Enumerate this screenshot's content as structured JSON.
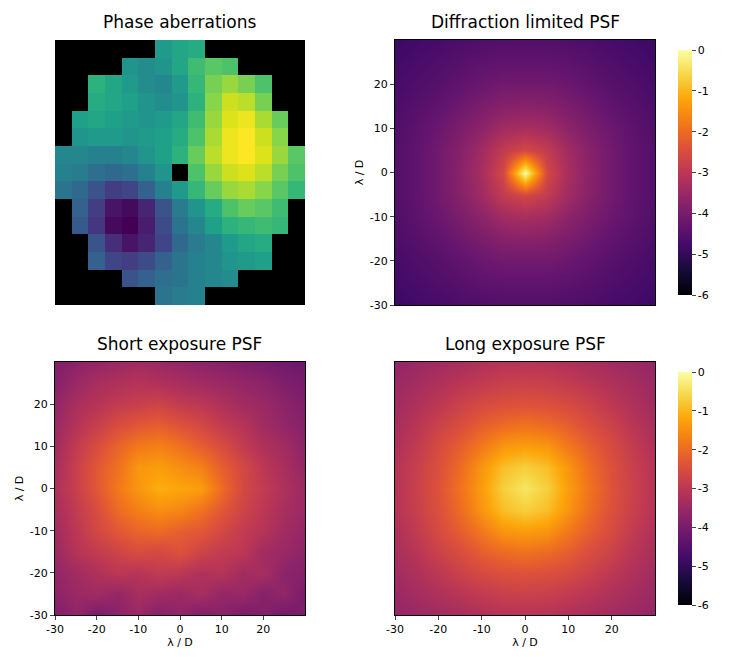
{
  "chart_data": [
    {
      "type": "heatmap",
      "title": "Phase aberrations",
      "color": "viridis",
      "tick_labels": false,
      "xlim": [
        -7.5,
        7.5
      ],
      "ylim": [
        -7.5,
        7.5
      ],
      "x": [
        -7,
        -6,
        -5,
        -4,
        -3,
        -2,
        -1,
        0,
        1,
        2,
        3,
        4,
        5,
        6,
        7
      ],
      "y": [
        -7,
        -6,
        -5,
        -4,
        -3,
        -2,
        -1,
        0,
        1,
        2,
        3,
        4,
        5,
        6,
        7
      ],
      "z": [
        [
          null,
          null,
          null,
          null,
          null,
          null,
          -0.5,
          -0.4,
          -0.3,
          null,
          null,
          null,
          null,
          null,
          null
        ],
        [
          null,
          null,
          null,
          null,
          -1.0,
          -0.8,
          -0.6,
          -0.5,
          -0.3,
          -0.2,
          -0.1,
          null,
          null,
          null,
          null
        ],
        [
          null,
          null,
          -0.8,
          -1.2,
          -1.3,
          -1.1,
          -0.8,
          -0.5,
          -0.3,
          -0.2,
          0.0,
          0.1,
          0.2,
          null,
          null
        ],
        [
          null,
          null,
          -1.0,
          -1.5,
          -1.8,
          -1.6,
          -1.2,
          -0.7,
          -0.4,
          -0.2,
          0.1,
          0.3,
          0.4,
          null,
          null
        ],
        [
          null,
          -0.9,
          -1.4,
          -1.9,
          -2.0,
          -1.7,
          -1.1,
          -0.5,
          -0.2,
          0.2,
          0.5,
          0.6,
          0.7,
          0.6,
          null
        ],
        [
          null,
          -0.8,
          -1.3,
          -1.8,
          -1.9,
          -1.6,
          -1.0,
          -0.4,
          0.0,
          0.4,
          0.8,
          1.0,
          0.9,
          0.7,
          null
        ],
        [
          -0.5,
          -0.7,
          -1.0,
          -1.3,
          -1.2,
          -0.8,
          -0.3,
          0.1,
          0.6,
          1.0,
          1.3,
          1.4,
          1.2,
          0.9,
          0.6
        ],
        [
          -0.3,
          -0.4,
          -0.6,
          -0.7,
          -0.6,
          -0.3,
          0.0,
          null,
          0.8,
          1.3,
          1.6,
          1.7,
          1.5,
          1.1,
          0.8
        ],
        [
          -0.2,
          -0.2,
          -0.3,
          -0.3,
          -0.2,
          0.0,
          0.2,
          0.5,
          1.0,
          1.5,
          1.8,
          1.9,
          1.7,
          1.3,
          0.9
        ],
        [
          null,
          0.0,
          0.1,
          0.1,
          0.0,
          0.1,
          0.2,
          0.4,
          0.8,
          1.4,
          1.8,
          1.9,
          1.6,
          1.2,
          null
        ],
        [
          null,
          0.2,
          0.3,
          0.2,
          0.1,
          0.0,
          0.1,
          0.3,
          0.7,
          1.3,
          1.7,
          1.8,
          1.4,
          1.0,
          null
        ],
        [
          null,
          null,
          0.4,
          0.3,
          0.2,
          0.0,
          -0.1,
          0.0,
          0.5,
          1.2,
          1.6,
          1.5,
          1.1,
          null,
          null
        ],
        [
          null,
          null,
          0.5,
          0.3,
          0.1,
          -0.1,
          -0.2,
          0.1,
          0.6,
          1.1,
          1.3,
          1.1,
          0.8,
          null,
          null
        ],
        [
          null,
          null,
          null,
          null,
          0.0,
          -0.1,
          0.0,
          0.3,
          0.7,
          0.9,
          0.8,
          null,
          null,
          null,
          null
        ],
        [
          null,
          null,
          null,
          null,
          null,
          null,
          0.1,
          0.3,
          0.4,
          null,
          null,
          null,
          null,
          null,
          null
        ]
      ]
    },
    {
      "type": "heatmap",
      "title": "Diffraction limited PSF",
      "color": "inferno",
      "tick_labels": "y",
      "ylabel": "λ / D",
      "xlim": [
        -30,
        30
      ],
      "ylim": [
        -30,
        30
      ],
      "yticks": [
        -30,
        -20,
        -10,
        0,
        10,
        20
      ],
      "colorbar": {
        "range": [
          -6,
          0
        ],
        "ticks": [
          0,
          -1,
          -2,
          -3,
          -4,
          -5,
          -6
        ]
      },
      "x": [
        -30,
        -25,
        -20,
        -15,
        -10,
        -5,
        0,
        5,
        10,
        15,
        20,
        25,
        30
      ],
      "y": [
        -30,
        -25,
        -20,
        -15,
        -10,
        -5,
        0,
        5,
        10,
        15,
        20,
        25,
        30
      ],
      "z": [
        [
          -4.9,
          -4.8,
          -4.75,
          -4.65,
          -4.6,
          -4.55,
          -4.55,
          -4.55,
          -4.6,
          -4.65,
          -4.75,
          -4.8,
          -4.9
        ],
        [
          -4.8,
          -4.7,
          -4.6,
          -4.5,
          -4.4,
          -4.35,
          -4.35,
          -4.35,
          -4.4,
          -4.5,
          -4.6,
          -4.7,
          -4.8
        ],
        [
          -4.75,
          -4.6,
          -4.5,
          -4.35,
          -4.2,
          -4.1,
          -4.1,
          -4.1,
          -4.2,
          -4.35,
          -4.5,
          -4.6,
          -4.75
        ],
        [
          -4.65,
          -4.5,
          -4.35,
          -4.15,
          -3.95,
          -3.8,
          -3.75,
          -3.8,
          -3.95,
          -4.15,
          -4.35,
          -4.5,
          -4.65
        ],
        [
          -4.6,
          -4.4,
          -4.2,
          -3.95,
          -3.7,
          -3.4,
          -3.3,
          -3.4,
          -3.7,
          -3.95,
          -4.2,
          -4.4,
          -4.6
        ],
        [
          -4.55,
          -4.35,
          -4.1,
          -3.8,
          -3.4,
          -2.9,
          -2.6,
          -2.9,
          -3.4,
          -3.8,
          -4.1,
          -4.35,
          -4.55
        ],
        [
          -4.55,
          -4.35,
          -4.1,
          -3.75,
          -3.3,
          -2.6,
          0,
          -2.6,
          -3.3,
          -3.75,
          -4.1,
          -4.35,
          -4.55
        ],
        [
          -4.55,
          -4.35,
          -4.1,
          -3.8,
          -3.4,
          -2.9,
          -2.6,
          -2.9,
          -3.4,
          -3.8,
          -4.1,
          -4.35,
          -4.55
        ],
        [
          -4.6,
          -4.4,
          -4.2,
          -3.95,
          -3.7,
          -3.4,
          -3.3,
          -3.4,
          -3.7,
          -3.95,
          -4.2,
          -4.4,
          -4.6
        ],
        [
          -4.65,
          -4.5,
          -4.35,
          -4.15,
          -3.95,
          -3.8,
          -3.75,
          -3.8,
          -3.95,
          -4.15,
          -4.35,
          -4.5,
          -4.65
        ],
        [
          -4.75,
          -4.6,
          -4.5,
          -4.35,
          -4.2,
          -4.1,
          -4.1,
          -4.1,
          -4.2,
          -4.35,
          -4.5,
          -4.6,
          -4.75
        ],
        [
          -4.8,
          -4.7,
          -4.6,
          -4.5,
          -4.4,
          -4.35,
          -4.35,
          -4.35,
          -4.4,
          -4.5,
          -4.6,
          -4.7,
          -4.8
        ],
        [
          -4.9,
          -4.8,
          -4.75,
          -4.65,
          -4.6,
          -4.55,
          -4.55,
          -4.55,
          -4.6,
          -4.65,
          -4.75,
          -4.8,
          -4.9
        ]
      ]
    },
    {
      "type": "heatmap",
      "title": "Short exposure PSF",
      "color": "inferno",
      "xlabel": "λ / D",
      "ylabel": "λ / D",
      "xlim": [
        -30,
        30
      ],
      "ylim": [
        -30,
        30
      ],
      "xticks": [
        -30,
        -20,
        -10,
        0,
        10,
        20
      ],
      "yticks": [
        -30,
        -20,
        -10,
        0,
        10,
        20
      ],
      "zlim": [
        -6,
        0
      ],
      "x": [
        -30,
        -25,
        -20,
        -15,
        -10,
        -5,
        0,
        5,
        10,
        15,
        20,
        25,
        30
      ],
      "y": [
        -30,
        -25,
        -20,
        -15,
        -10,
        -5,
        0,
        5,
        10,
        15,
        20,
        25,
        30
      ],
      "z": [
        [
          -3.9,
          -3.6,
          -4.0,
          -3.7,
          -3.5,
          -3.8,
          -3.6,
          -3.9,
          -3.7,
          -4.0,
          -3.8,
          -4.1,
          -3.9
        ],
        [
          -3.7,
          -3.5,
          -3.4,
          -3.6,
          -3.3,
          -3.4,
          -3.5,
          -3.3,
          -3.6,
          -3.5,
          -3.8,
          -3.6,
          -4.0
        ],
        [
          -3.6,
          -3.4,
          -3.2,
          -3.0,
          -3.1,
          -2.9,
          -3.0,
          -3.2,
          -3.1,
          -3.4,
          -3.3,
          -3.7,
          -3.8
        ],
        [
          -3.5,
          -3.1,
          -2.9,
          -2.7,
          -2.5,
          -2.6,
          -2.4,
          -2.7,
          -2.9,
          -3.0,
          -3.4,
          -3.5,
          -3.7
        ],
        [
          -3.4,
          -3.0,
          -2.6,
          -2.3,
          -2.1,
          -2.0,
          -2.2,
          -2.3,
          -2.6,
          -2.9,
          -3.1,
          -3.4,
          -3.6
        ],
        [
          -3.3,
          -2.9,
          -2.5,
          -2.0,
          -1.7,
          -1.5,
          -1.6,
          -1.9,
          -2.3,
          -2.7,
          -3.0,
          -3.3,
          -3.5
        ],
        [
          -3.2,
          -2.8,
          -2.3,
          -1.8,
          -1.4,
          -1.1,
          -1.2,
          -1.3,
          -2.0,
          -2.6,
          -2.9,
          -3.2,
          -3.5
        ],
        [
          -3.3,
          -2.8,
          -2.3,
          -1.9,
          -1.4,
          -1.3,
          -1.5,
          -1.7,
          -2.2,
          -2.6,
          -3.0,
          -3.3,
          -3.6
        ],
        [
          -3.4,
          -2.9,
          -2.5,
          -2.1,
          -1.8,
          -1.7,
          -1.9,
          -2.2,
          -2.5,
          -2.9,
          -3.2,
          -3.4,
          -3.7
        ],
        [
          -3.5,
          -3.1,
          -2.8,
          -2.5,
          -2.3,
          -2.2,
          -2.4,
          -2.6,
          -2.9,
          -3.1,
          -3.4,
          -3.6,
          -3.8
        ],
        [
          -3.6,
          -3.3,
          -3.1,
          -2.9,
          -2.8,
          -2.7,
          -2.9,
          -3.0,
          -3.2,
          -3.4,
          -3.5,
          -3.7,
          -3.9
        ],
        [
          -3.8,
          -3.5,
          -3.3,
          -3.2,
          -3.1,
          -3.2,
          -3.3,
          -3.4,
          -3.5,
          -3.6,
          -3.7,
          -3.9,
          -4.0
        ],
        [
          -3.9,
          -3.7,
          -3.6,
          -3.5,
          -3.4,
          -3.5,
          -3.6,
          -3.7,
          -3.8,
          -3.9,
          -4.0,
          -4.1,
          -4.2
        ]
      ]
    },
    {
      "type": "heatmap",
      "title": "Long exposure PSF",
      "color": "inferno",
      "tick_labels": "x",
      "xlabel": "λ / D",
      "xlim": [
        -30,
        30
      ],
      "ylim": [
        -30,
        30
      ],
      "xticks": [
        -30,
        -20,
        -10,
        0,
        10,
        20
      ],
      "colorbar": {
        "range": [
          -6,
          0
        ],
        "ticks": [
          0,
          -1,
          -2,
          -3,
          -4,
          -5,
          -6
        ]
      },
      "x": [
        -30,
        -25,
        -20,
        -15,
        -10,
        -5,
        0,
        5,
        10,
        15,
        20,
        25,
        30
      ],
      "y": [
        -30,
        -25,
        -20,
        -15,
        -10,
        -5,
        0,
        5,
        10,
        15,
        20,
        25,
        30
      ],
      "z": [
        [
          -3.6,
          -3.5,
          -3.4,
          -3.3,
          -3.2,
          -3.1,
          -3.1,
          -3.1,
          -3.2,
          -3.3,
          -3.4,
          -3.5,
          -3.6
        ],
        [
          -3.5,
          -3.35,
          -3.2,
          -3.05,
          -2.9,
          -2.8,
          -2.75,
          -2.8,
          -2.9,
          -3.05,
          -3.2,
          -3.35,
          -3.5
        ],
        [
          -3.4,
          -3.2,
          -3.0,
          -2.75,
          -2.55,
          -2.45,
          -2.4,
          -2.45,
          -2.55,
          -2.75,
          -3.0,
          -3.2,
          -3.4
        ],
        [
          -3.3,
          -3.05,
          -2.75,
          -2.5,
          -2.2,
          -2.0,
          -1.9,
          -2.0,
          -2.2,
          -2.5,
          -2.75,
          -3.05,
          -3.3
        ],
        [
          -3.2,
          -2.9,
          -2.55,
          -2.2,
          -1.8,
          -1.4,
          -1.3,
          -1.4,
          -1.8,
          -2.2,
          -2.55,
          -2.9,
          -3.2
        ],
        [
          -3.1,
          -2.8,
          -2.45,
          -2.0,
          -1.4,
          -0.9,
          -0.7,
          -0.9,
          -1.4,
          -2.0,
          -2.45,
          -2.8,
          -3.1
        ],
        [
          -3.1,
          -2.75,
          -2.4,
          -1.9,
          -1.3,
          -0.7,
          -0.4,
          -0.7,
          -1.3,
          -1.9,
          -2.4,
          -2.75,
          -3.1
        ],
        [
          -3.1,
          -2.8,
          -2.45,
          -2.0,
          -1.4,
          -0.9,
          -0.7,
          -0.9,
          -1.4,
          -2.0,
          -2.45,
          -2.8,
          -3.1
        ],
        [
          -3.2,
          -2.9,
          -2.55,
          -2.2,
          -1.8,
          -1.4,
          -1.3,
          -1.4,
          -1.8,
          -2.2,
          -2.55,
          -2.9,
          -3.2
        ],
        [
          -3.3,
          -3.05,
          -2.75,
          -2.5,
          -2.2,
          -2.0,
          -1.9,
          -2.0,
          -2.2,
          -2.5,
          -2.75,
          -3.05,
          -3.3
        ],
        [
          -3.4,
          -3.2,
          -3.0,
          -2.75,
          -2.55,
          -2.45,
          -2.4,
          -2.45,
          -2.55,
          -2.75,
          -3.0,
          -3.2,
          -3.4
        ],
        [
          -3.5,
          -3.35,
          -3.2,
          -3.05,
          -2.9,
          -2.8,
          -2.75,
          -2.8,
          -2.9,
          -3.05,
          -3.2,
          -3.35,
          -3.5
        ],
        [
          -3.6,
          -3.5,
          -3.4,
          -3.3,
          -3.2,
          -3.1,
          -3.1,
          -3.1,
          -3.2,
          -3.3,
          -3.4,
          -3.5,
          -3.6
        ]
      ]
    }
  ]
}
